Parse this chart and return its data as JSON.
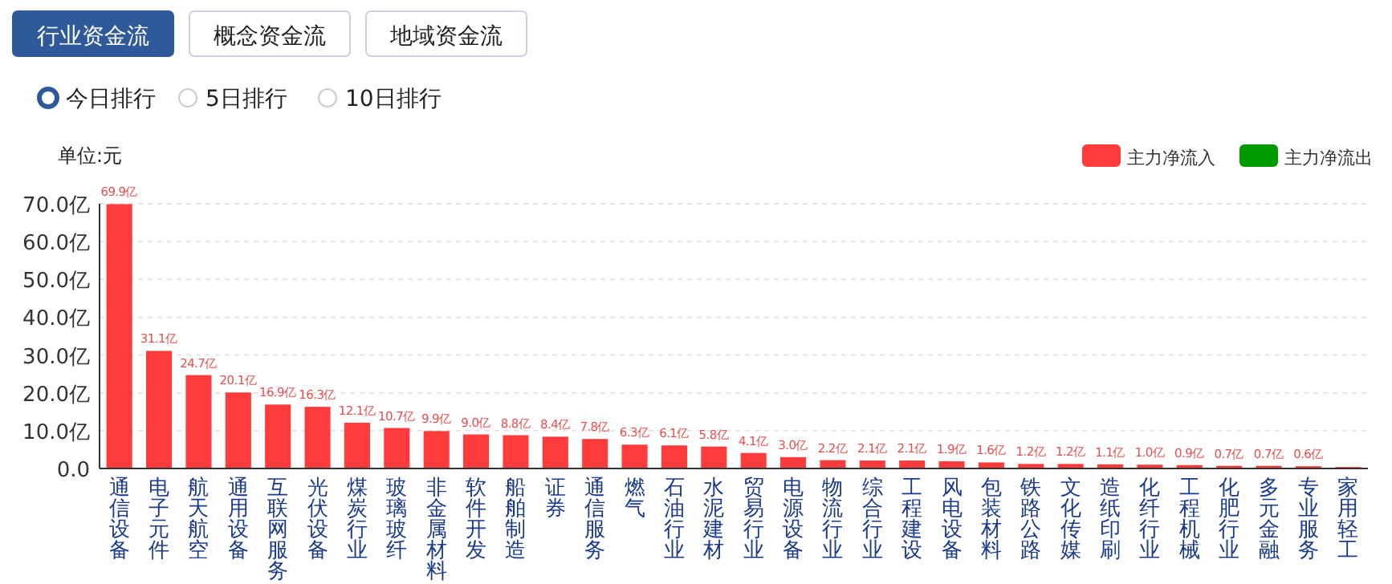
{
  "chart_data": {
    "type": "bar",
    "annotations": [
      "行业资金流",
      "概念资金流",
      "地域资金流",
      "今日排行",
      "5日排行",
      "10日排行"
    ],
    "ylabel": "单位:元",
    "categories": [
      "通信设备",
      "电子元件",
      "航天航空",
      "通用设备",
      "互联网服务",
      "光伏设备",
      "煤炭行业",
      "玻璃玻纤",
      "非金属材料",
      "软件开发",
      "船舶制造",
      "证券",
      "通信服务",
      "燃气",
      "石油行业",
      "水泥建材",
      "贸易行业",
      "电源设备",
      "物流行业",
      "综合行业",
      "工程建设",
      "风电设备",
      "包装材料",
      "铁路公路",
      "文化传媒",
      "造纸印刷",
      "化纤行业",
      "工程机械",
      "化肥行业",
      "多元金融",
      "专业服务",
      "家用轻工"
    ],
    "series": [
      {
        "name": "主力净流入",
        "color": "#ff3b3b",
        "values": [
          69.9,
          31.1,
          24.7,
          20.1,
          16.9,
          16.3,
          12.1,
          10.7,
          9.9,
          9.0,
          8.8,
          8.4,
          7.8,
          6.3,
          6.1,
          5.8,
          4.1,
          3.0,
          2.2,
          2.1,
          2.1,
          1.9,
          1.6,
          1.2,
          1.2,
          1.1,
          1.0,
          0.9,
          0.7,
          0.7,
          0.6,
          0.4
        ],
        "value_labels": [
          "69.9亿",
          "31.1亿",
          "24.7亿",
          "20.1亿",
          "16.9亿",
          "16.3亿",
          "12.1亿",
          "10.7亿",
          "9.9亿",
          "9.0亿",
          "8.8亿",
          "8.4亿",
          "7.8亿",
          "6.3亿",
          "6.1亿",
          "5.8亿",
          "4.1亿",
          "3.0亿",
          "2.2亿",
          "2.1亿",
          "2.1亿",
          "1.9亿",
          "1.6亿",
          "1.2亿",
          "1.2亿",
          "1.1亿",
          "1.0亿",
          "0.9亿",
          "0.7亿",
          "0.7亿",
          "0.6亿",
          null
        ]
      },
      {
        "name": "主力净流出",
        "color": "#009900",
        "values": [
          null,
          null,
          null,
          null,
          null,
          null,
          null,
          null,
          null,
          null,
          null,
          null,
          null,
          null,
          null,
          null,
          null,
          null,
          null,
          null,
          null,
          null,
          null,
          null,
          null,
          null,
          null,
          null,
          null,
          null,
          null,
          null
        ]
      }
    ],
    "ylim": [
      0,
      70
    ],
    "yticks": [
      {
        "value": 0,
        "label": "0.0"
      },
      {
        "value": 10,
        "label": "10.0亿"
      },
      {
        "value": 20,
        "label": "20.0亿"
      },
      {
        "value": 30,
        "label": "30.0亿"
      },
      {
        "value": 40,
        "label": "40.0亿"
      },
      {
        "value": 50,
        "label": "50.0亿"
      },
      {
        "value": 60,
        "label": "60.0亿"
      },
      {
        "value": 70,
        "label": "70.0亿"
      }
    ],
    "grid": "y",
    "legend": "top right"
  }
}
